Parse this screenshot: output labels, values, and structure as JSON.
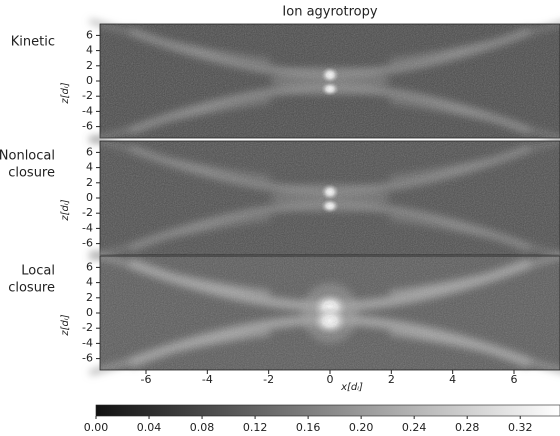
{
  "chart_data": {
    "type": "heatmap",
    "title": "Ion agyrotropy",
    "panels": [
      {
        "label": [
          "Kinetic"
        ],
        "ylabel": "z[dᵢ]"
      },
      {
        "label": [
          "Nonlocal",
          "closure"
        ],
        "ylabel": "z[dᵢ]"
      },
      {
        "label": [
          "Local",
          "closure"
        ],
        "ylabel": "z[dᵢ]"
      }
    ],
    "xlabel": "x[dᵢ]",
    "xlim": [
      -7.5,
      7.5
    ],
    "xticks": [
      -6,
      -4,
      -2,
      0,
      2,
      4,
      6
    ],
    "ylim": [
      -7.5,
      7.5
    ],
    "yticks": [
      6,
      4,
      2,
      0,
      -2,
      -4,
      -6
    ],
    "colormap": "gray",
    "clim": [
      0,
      0.35
    ],
    "cticks": [
      {
        "value": 0,
        "label": "0.00"
      },
      {
        "value": 0.04,
        "label": "0.04"
      },
      {
        "value": 0.08,
        "label": "0.08"
      },
      {
        "value": 0.12,
        "label": "0.12"
      },
      {
        "value": 0.16,
        "label": "0.16"
      },
      {
        "value": 0.2,
        "label": "0.20"
      },
      {
        "value": 0.24,
        "label": "0.24"
      },
      {
        "value": 0.28,
        "label": "0.28"
      },
      {
        "value": 0.32,
        "label": "0.32"
      }
    ]
  }
}
